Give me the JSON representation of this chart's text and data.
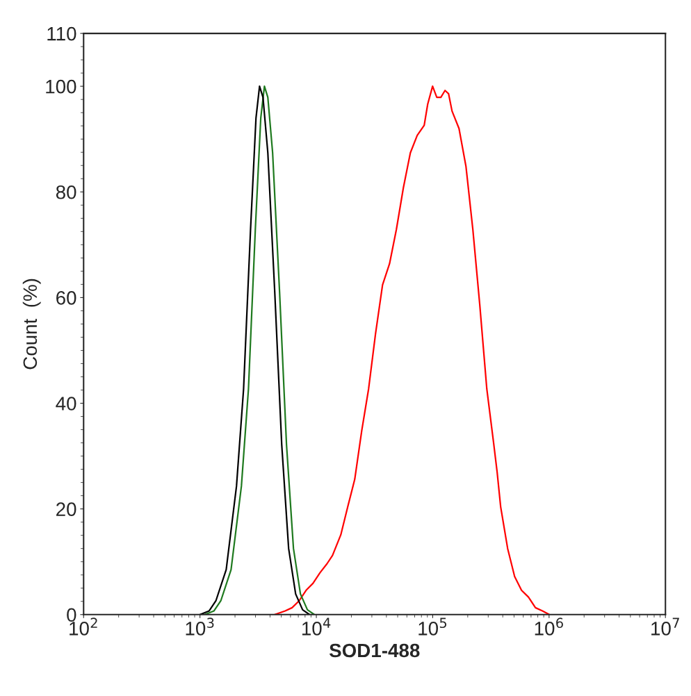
{
  "chart_data": {
    "type": "line",
    "xlabel": "SOD1-488",
    "ylabel": "Count  (%)",
    "log": "x",
    "xlim": [
      100,
      10000000
    ],
    "xticks": [
      {
        "value": 100,
        "label": "10$^{2}$"
      },
      {
        "value": 1000,
        "label": "10$^{3}$"
      },
      {
        "value": 10000,
        "label": "10$^{4}$"
      },
      {
        "value": 100000,
        "label": "10$^{5}$"
      },
      {
        "value": 1000000,
        "label": "10$^{6}$"
      },
      {
        "value": 10000000,
        "label": "10$^{7}$"
      }
    ],
    "ylim": [
      0,
      110
    ],
    "yticks": [
      0,
      20,
      40,
      60,
      80,
      100,
      110
    ],
    "grid": false,
    "legend": false,
    "marker": "none",
    "line_style": "solid",
    "series": [
      {
        "color": "#ff0000",
        "x": [
          4390,
          5400,
          6190,
          7110,
          8170,
          9350,
          10740,
          12330,
          13770,
          16230,
          18620,
          21380,
          24550,
          28120,
          32280,
          37070,
          42560,
          48750,
          55980,
          64270,
          73620,
          84530,
          90570,
          99770,
          108400,
          117500,
          127600,
          136800,
          146600,
          168300,
          193200,
          221300,
          254100,
          291700,
          335000,
          358100,
          383700,
          440600,
          505800,
          579400,
          665300,
          763800,
          877000,
          1005000
        ],
        "values": [
          0,
          0.7,
          1.3,
          2.6,
          4.6,
          5.9,
          7.9,
          9.6,
          11.2,
          15.1,
          20.4,
          25.6,
          34.8,
          42.7,
          53.2,
          62.4,
          66.4,
          72.9,
          80.8,
          87.4,
          90.7,
          92.6,
          96.6,
          100,
          97.9,
          97.9,
          99.2,
          98.6,
          95.3,
          92.0,
          84.8,
          72.9,
          58.5,
          42.7,
          32.2,
          26.9,
          20.4,
          12.5,
          7.2,
          4.6,
          3.3,
          1.3,
          0.7,
          0
        ]
      },
      {
        "color": "#1f7a1f",
        "x": [
          1100,
          1320,
          1510,
          1850,
          2270,
          2610,
          2990,
          3330,
          3580,
          3830,
          4210,
          4830,
          5540,
          6360,
          7300,
          8380,
          9600
        ],
        "values": [
          0,
          0.7,
          2.6,
          8.5,
          24.3,
          42.7,
          72.9,
          94,
          100,
          97.9,
          87.4,
          61.1,
          32.2,
          12.5,
          3.9,
          0.9,
          0
        ]
      },
      {
        "color": "#000000",
        "x": [
          1000,
          1200,
          1370,
          1680,
          2060,
          2370,
          2720,
          3030,
          3250,
          3480,
          3830,
          4390,
          5040,
          5780,
          6640,
          7620,
          8730
        ],
        "values": [
          0,
          0.7,
          2.6,
          8.5,
          24.3,
          42.7,
          72.9,
          94,
          100,
          97.9,
          87.4,
          61.1,
          32.2,
          12.5,
          3.9,
          0.9,
          0
        ]
      }
    ]
  }
}
